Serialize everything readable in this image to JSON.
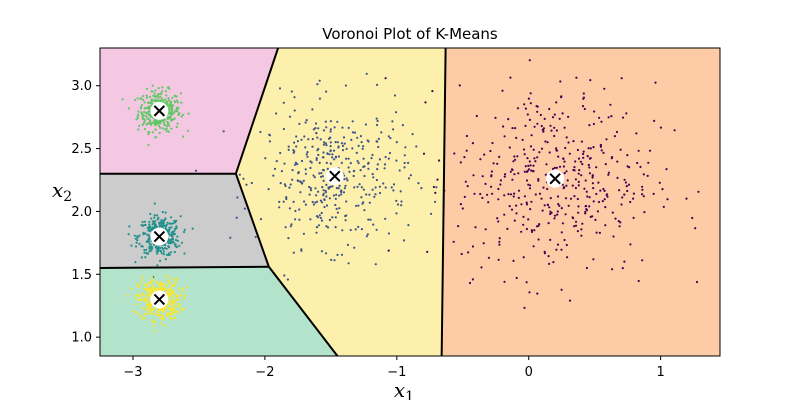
{
  "chart_data": {
    "type": "scatter",
    "title": "Voronoi Plot of K-Means",
    "xlabel": "x",
    "xlabel_sub": "1",
    "ylabel": "x",
    "ylabel_sub": "2",
    "xlim": [
      -3.25,
      1.45
    ],
    "ylim": [
      0.85,
      3.3
    ],
    "xticks": [
      -3,
      -2,
      -1,
      0,
      1
    ],
    "xtick_labels": [
      "−3",
      "−2",
      "−1",
      "0",
      "1"
    ],
    "yticks": [
      1.0,
      1.5,
      2.0,
      2.5,
      3.0
    ],
    "ytick_labels": [
      "1.0",
      "1.5",
      "2.0",
      "2.5",
      "3.0"
    ],
    "grid": false,
    "legend": "none",
    "regions": [
      {
        "cluster": "upper-left",
        "color": "#f4c7e3",
        "polygon": [
          [
            -3.25,
            3.3
          ],
          [
            -1.9,
            3.3
          ],
          [
            -2.22,
            2.3
          ],
          [
            -3.25,
            2.3
          ]
        ]
      },
      {
        "cluster": "middle-left",
        "color": "#cccccc",
        "polygon": [
          [
            -3.25,
            2.3
          ],
          [
            -2.22,
            2.3
          ],
          [
            -1.97,
            1.56
          ],
          [
            -3.25,
            1.55
          ]
        ]
      },
      {
        "cluster": "lower-left",
        "color": "#b3e3cb",
        "polygon": [
          [
            -3.25,
            1.55
          ],
          [
            -1.97,
            1.56
          ],
          [
            -1.45,
            0.85
          ],
          [
            -3.25,
            0.85
          ]
        ]
      },
      {
        "cluster": "center",
        "color": "#fdf0ac",
        "polygon": [
          [
            -1.9,
            3.3
          ],
          [
            -0.63,
            3.3
          ],
          [
            -0.66,
            0.85
          ],
          [
            -1.45,
            0.85
          ],
          [
            -1.97,
            1.56
          ],
          [
            -2.22,
            2.3
          ]
        ]
      },
      {
        "cluster": "right",
        "color": "#fdcca7",
        "polygon": [
          [
            -0.63,
            3.3
          ],
          [
            1.45,
            3.3
          ],
          [
            1.45,
            0.85
          ],
          [
            -0.66,
            0.85
          ]
        ]
      }
    ],
    "boundaries": [
      [
        [
          -1.9,
          3.3
        ],
        [
          -2.22,
          2.3
        ]
      ],
      [
        [
          -3.25,
          2.3
        ],
        [
          -2.22,
          2.3
        ]
      ],
      [
        [
          -2.22,
          2.3
        ],
        [
          -1.97,
          1.56
        ]
      ],
      [
        [
          -3.25,
          1.55
        ],
        [
          -1.97,
          1.56
        ]
      ],
      [
        [
          -1.97,
          1.56
        ],
        [
          -1.45,
          0.85
        ]
      ],
      [
        [
          -0.63,
          3.3
        ],
        [
          -0.66,
          0.85
        ]
      ]
    ],
    "series": [
      {
        "color": "#5ec962",
        "center": [
          -2.8,
          2.8
        ],
        "spread": [
          0.08,
          0.08
        ],
        "count": 350
      },
      {
        "color": "#21918c",
        "center": [
          -2.8,
          1.8
        ],
        "spread": [
          0.08,
          0.08
        ],
        "count": 350
      },
      {
        "color": "#fde725",
        "center": [
          -2.8,
          1.3
        ],
        "spread": [
          0.08,
          0.08
        ],
        "count": 350
      },
      {
        "color": "#3b528b",
        "center": [
          -1.47,
          2.28
        ],
        "spread": [
          0.28,
          0.28
        ],
        "count": 400
      },
      {
        "color": "#440154",
        "center": [
          0.2,
          2.26
        ],
        "spread": [
          0.38,
          0.38
        ],
        "count": 450
      }
    ],
    "centroids": [
      [
        -2.8,
        2.8
      ],
      [
        -2.8,
        1.8
      ],
      [
        -2.8,
        1.3
      ],
      [
        -1.47,
        2.28
      ],
      [
        0.2,
        2.26
      ]
    ]
  }
}
